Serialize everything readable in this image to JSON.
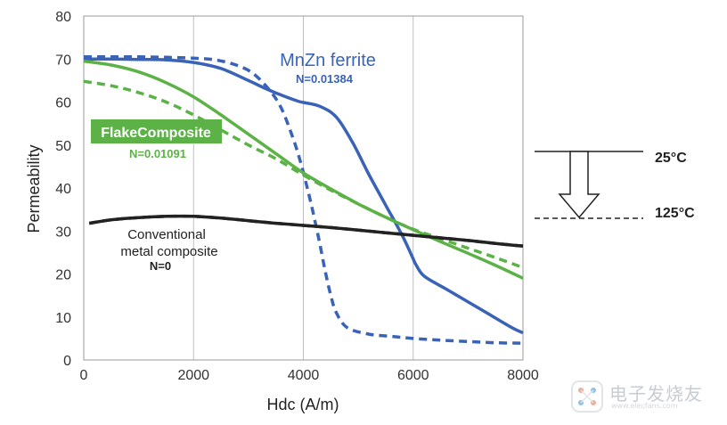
{
  "chart_data": {
    "type": "line",
    "title": "",
    "xlabel": "Hdc (A/m)",
    "ylabel": "Permeability",
    "xlim": [
      0,
      8000
    ],
    "ylim": [
      0,
      80
    ],
    "xticks": [
      0,
      2000,
      4000,
      6000,
      8000
    ],
    "yticks": [
      0,
      10,
      20,
      30,
      40,
      50,
      60,
      70,
      80
    ],
    "grid": "vertical",
    "series": [
      {
        "name": "MnZn ferrite 25°C",
        "temperature": "25°C",
        "style": "solid",
        "color": "#3a63b8",
        "x": [
          0,
          500,
          1000,
          1500,
          2000,
          2500,
          3000,
          3300,
          3600,
          3900,
          4000,
          4300,
          4600,
          4900,
          5200,
          5500,
          5800,
          6000,
          6050,
          6200,
          6600,
          7000,
          7400,
          7800,
          8000
        ],
        "y": [
          70,
          70,
          69.9,
          69.8,
          69.2,
          67.8,
          65,
          63.2,
          61.6,
          60.2,
          59.9,
          59,
          56.5,
          50.5,
          43,
          36,
          29,
          23.5,
          22.2,
          19.5,
          16.5,
          13.5,
          10.5,
          7.5,
          6.3
        ]
      },
      {
        "name": "MnZn ferrite 125°C",
        "temperature": "125°C",
        "style": "dashed",
        "color": "#3a63b8",
        "x": [
          0,
          500,
          1000,
          1500,
          2000,
          2400,
          2800,
          3100,
          3400,
          3600,
          3800,
          3950,
          4100,
          4200,
          4300,
          4400,
          4500,
          4600,
          4800,
          5200,
          5600,
          6000,
          6500,
          7000,
          7500,
          8000
        ],
        "y": [
          70.5,
          70.5,
          70.5,
          70.4,
          70.2,
          69.8,
          68.5,
          66.5,
          62.5,
          58.5,
          52,
          46,
          38.5,
          33,
          27,
          20.5,
          15,
          11,
          7.5,
          6,
          5.5,
          5,
          4.6,
          4.3,
          4.0,
          3.9
        ]
      },
      {
        "name": "FlakeComposite 25°C",
        "temperature": "25°C",
        "style": "solid",
        "color": "#5cb246",
        "x": [
          0,
          500,
          1000,
          1500,
          2000,
          2500,
          3000,
          3500,
          4000,
          4500,
          5000,
          5500,
          6000,
          6500,
          7000,
          7500,
          8000
        ],
        "y": [
          69.5,
          68.6,
          67,
          64.5,
          61.2,
          57,
          52.5,
          48,
          43.5,
          39.8,
          36.3,
          33.2,
          30.3,
          27.5,
          24.8,
          22,
          19
        ]
      },
      {
        "name": "FlakeComposite 125°C",
        "temperature": "125°C",
        "style": "dashed",
        "color": "#5cb246",
        "x": [
          0,
          500,
          1000,
          1500,
          2000,
          2500,
          3000,
          3500,
          4000,
          4500,
          5000,
          5500,
          6000,
          6500,
          7000,
          7500,
          8000
        ],
        "y": [
          64.8,
          63.8,
          62.2,
          60,
          57,
          53.5,
          50,
          46.8,
          43,
          39.5,
          36.3,
          33.2,
          30.4,
          28.2,
          26,
          23.8,
          21.5
        ]
      },
      {
        "name": "Conventional metal composite 25°C",
        "temperature": "25°C",
        "style": "solid",
        "color": "#222222",
        "x": [
          100,
          500,
          1000,
          1500,
          2000,
          2500,
          3000,
          3500,
          4000,
          4500,
          5000,
          5500,
          6000,
          6500,
          7000,
          7500,
          8000
        ],
        "y": [
          31.8,
          32.6,
          33.1,
          33.4,
          33.4,
          33,
          32.4,
          31.8,
          31.3,
          30.8,
          30.2,
          29.6,
          29,
          28.4,
          27.8,
          27.1,
          26.5
        ]
      },
      {
        "name": "Conventional metal composite 125°C",
        "temperature": "125°C",
        "style": "dashed",
        "color": "#222222",
        "x": [
          100,
          500,
          1000,
          1500,
          2000,
          2500,
          3000,
          3500,
          4000,
          4500,
          5000,
          5500,
          6000,
          6500,
          7000,
          7500,
          8000
        ],
        "y": [
          31.8,
          32.6,
          33.1,
          33.4,
          33.4,
          33,
          32.4,
          31.8,
          31.3,
          30.8,
          30.2,
          29.6,
          29,
          28.4,
          27.8,
          27.1,
          26.5
        ]
      }
    ],
    "annotations": {
      "mnzn_title": "MnZn ferrite",
      "mnzn_n": "N=0.01384",
      "flake_title": "FlakeComposite",
      "flake_n": "N=0.01091",
      "conv_line1": "Conventional",
      "conv_line2": "metal composite",
      "conv_n": "N=0",
      "temp_high": "25°C",
      "temp_low": "125°C"
    },
    "legend_placement": "right"
  },
  "watermark": {
    "text": "电子发烧友",
    "sub": "www.elecfans.com"
  },
  "colors": {
    "blue": "#3a63b8",
    "green": "#5cb246",
    "black": "#222222",
    "grid": "#bfbfbf"
  }
}
